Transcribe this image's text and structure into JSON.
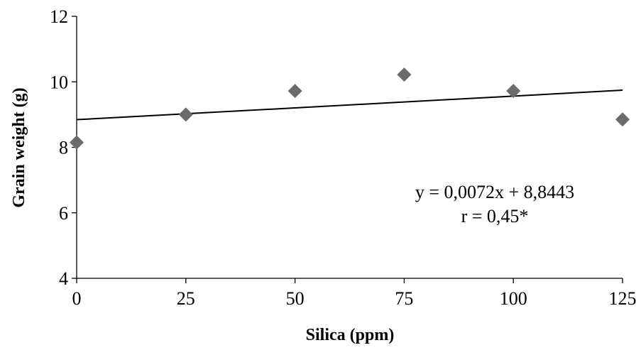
{
  "chart_data": {
    "type": "scatter",
    "xlabel": "Silica (ppm)",
    "ylabel": "Grain weight (g)",
    "xlim": [
      0,
      125
    ],
    "ylim": [
      4,
      12
    ],
    "xticks": [
      "0",
      "25",
      "50",
      "75",
      "100",
      "125"
    ],
    "yticks": [
      "4",
      "6",
      "8",
      "10",
      "12"
    ],
    "grid": false,
    "series": [
      {
        "marker": "diamond",
        "color": "#6b6b6b",
        "points": [
          {
            "x": 0,
            "y": 8.15
          },
          {
            "x": 25,
            "y": 9.0
          },
          {
            "x": 50,
            "y": 9.72
          },
          {
            "x": 75,
            "y": 10.22
          },
          {
            "x": 100,
            "y": 9.72
          },
          {
            "x": 125,
            "y": 8.85
          }
        ]
      }
    ],
    "trendline": {
      "slope": 0.0072,
      "intercept": 8.8443,
      "color": "#000000"
    },
    "annotations": [
      "y = 0,0072x + 8,8443",
      "r = 0,45*"
    ]
  }
}
